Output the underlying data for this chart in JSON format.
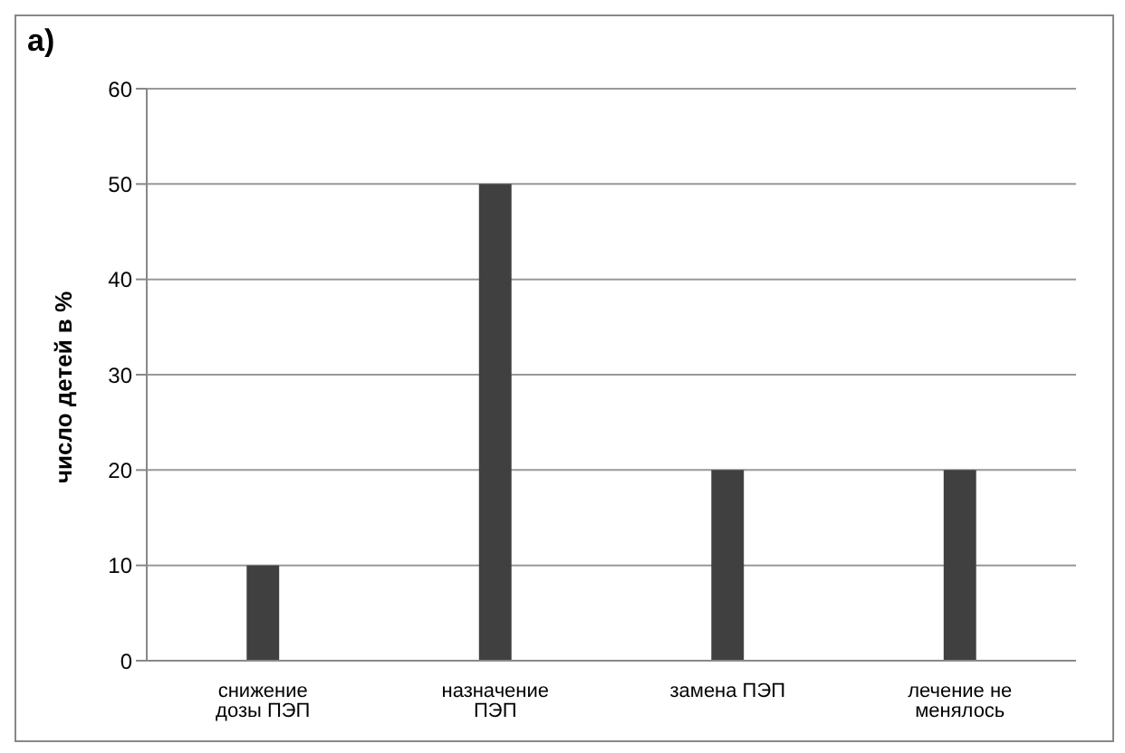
{
  "chart_data": {
    "type": "bar",
    "title": "a)",
    "ylabel": "число детей в %",
    "categories": [
      "снижение дозы ПЭП",
      "назначение ПЭП",
      "замена ПЭП",
      "лечение не менялось"
    ],
    "values": [
      10,
      50,
      20,
      20
    ],
    "color": "#404040",
    "ylim": [
      0,
      60
    ],
    "yticks": [
      0,
      10,
      20,
      30,
      40,
      50,
      60
    ],
    "grid": "y"
  }
}
